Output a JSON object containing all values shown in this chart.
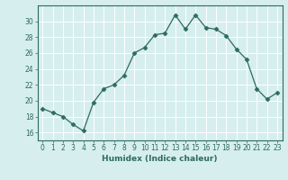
{
  "x": [
    0,
    1,
    2,
    3,
    4,
    5,
    6,
    7,
    8,
    9,
    10,
    11,
    12,
    13,
    14,
    15,
    16,
    17,
    18,
    19,
    20,
    21,
    22,
    23
  ],
  "y": [
    19,
    18.5,
    18,
    17,
    16.2,
    19.8,
    21.5,
    22,
    23.2,
    26,
    26.7,
    28.3,
    28.5,
    30.8,
    29,
    30.8,
    29.2,
    29,
    28.2,
    26.5,
    25.2,
    21.5,
    20.2,
    21
  ],
  "line_color": "#2e6b5e",
  "marker": "D",
  "marker_size": 2.5,
  "bg_color": "#d6eeee",
  "grid_color": "#b0d0d0",
  "xlabel": "Humidex (Indice chaleur)",
  "xlim": [
    -0.5,
    23.5
  ],
  "ylim": [
    15,
    32
  ],
  "yticks": [
    16,
    18,
    20,
    22,
    24,
    26,
    28,
    30
  ],
  "xticks": [
    0,
    1,
    2,
    3,
    4,
    5,
    6,
    7,
    8,
    9,
    10,
    11,
    12,
    13,
    14,
    15,
    16,
    17,
    18,
    19,
    20,
    21,
    22,
    23
  ],
  "tick_label_fontsize": 5.5,
  "xlabel_fontsize": 6.5
}
